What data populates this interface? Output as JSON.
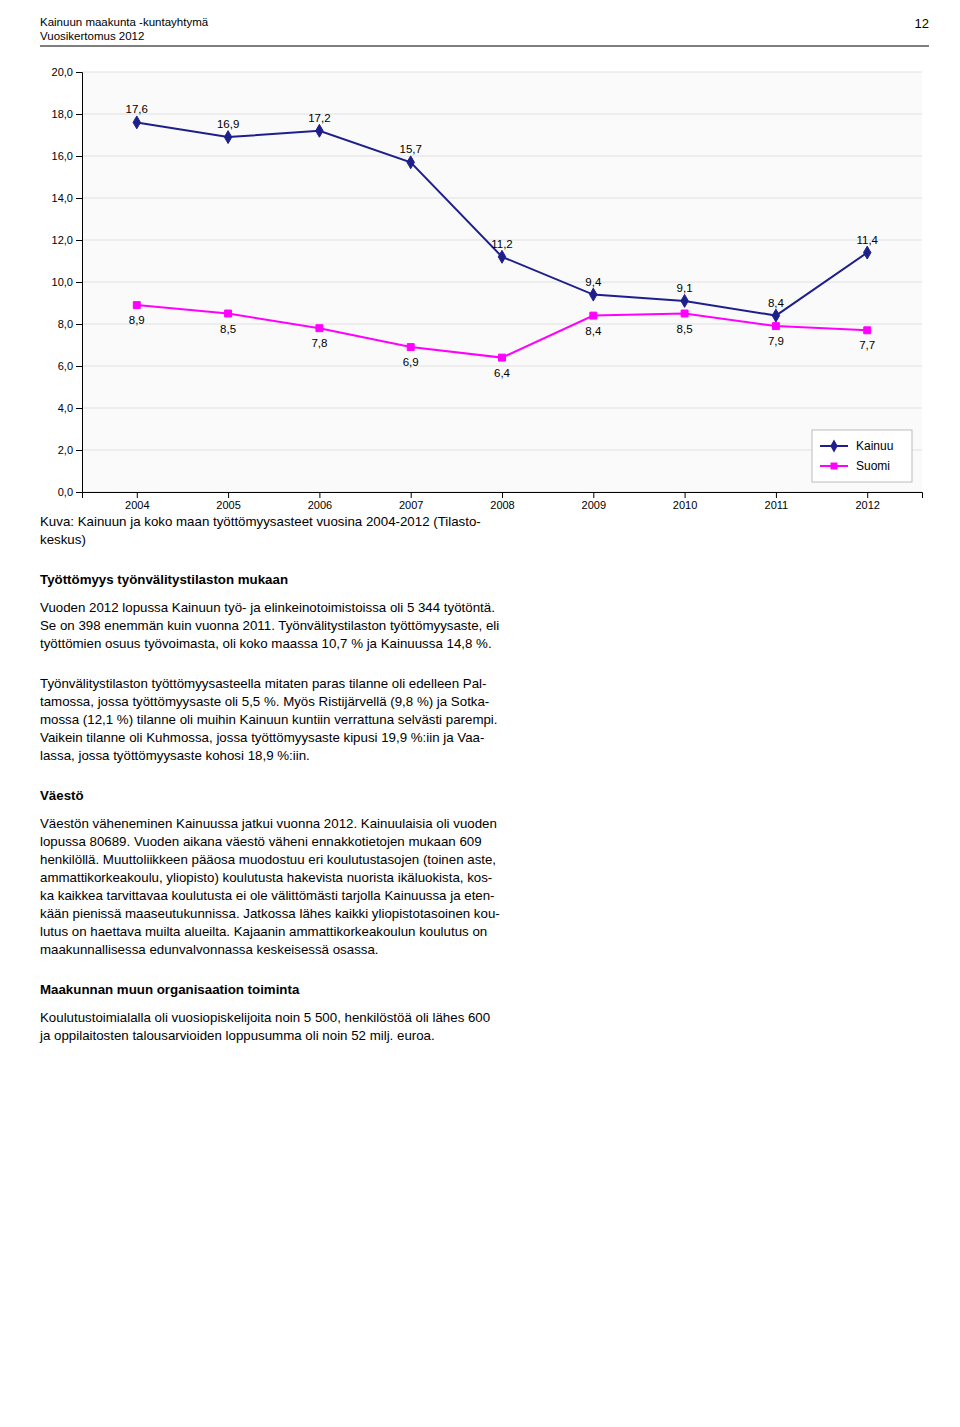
{
  "header": [
    "Kainuun maakunta -kuntayhtymä",
    "Vuosikertomus 2012"
  ],
  "page_number": "12",
  "chart_data": {
    "type": "line",
    "x": [
      2004,
      2005,
      2006,
      2007,
      2008,
      2009,
      2010,
      2011,
      2012
    ],
    "xlim": [
      2003.4,
      2012.6
    ],
    "xticks": [
      2004,
      2005,
      2006,
      2007,
      2008,
      2009,
      2010,
      2011,
      2012
    ],
    "ylim": [
      0.0,
      20.0
    ],
    "yticks": [
      {
        "value": 0.0,
        "label": "0,0"
      },
      {
        "value": 2.0,
        "label": "2,0"
      },
      {
        "value": 4.0,
        "label": "4,0"
      },
      {
        "value": 6.0,
        "label": "6,0"
      },
      {
        "value": 8.0,
        "label": "8,0"
      },
      {
        "value": 10.0,
        "label": "10,0"
      },
      {
        "value": 12.0,
        "label": "12,0"
      },
      {
        "value": 14.0,
        "label": "14,0"
      },
      {
        "value": 16.0,
        "label": "16,0"
      },
      {
        "value": 18.0,
        "label": "18,0"
      },
      {
        "value": 20.0,
        "label": "20,0"
      }
    ],
    "grid": true,
    "legend": "lower right",
    "data_labels": true,
    "series": [
      {
        "name": "Kainuu",
        "color": "#1F1F8C",
        "marker": "diamond",
        "values": [
          17.6,
          16.9,
          17.2,
          15.7,
          11.2,
          9.4,
          9.1,
          8.4,
          11.4
        ],
        "value_labels": [
          "17,6",
          "16,9",
          "17,2",
          "15,7",
          "11,2",
          "9,4",
          "9,1",
          "8,4",
          "11,4"
        ]
      },
      {
        "name": "Suomi",
        "color": "#FF00FF",
        "marker": "square",
        "values": [
          8.9,
          8.5,
          7.8,
          6.9,
          6.4,
          8.4,
          8.5,
          7.9,
          7.7
        ],
        "value_labels": [
          "8,9",
          "8,5",
          "7,8",
          "6,9",
          "6,4",
          "8,4",
          "8,5",
          "7,9",
          "7,7"
        ]
      }
    ]
  },
  "caption": [
    "Kuva: Kainuun ja koko maan työttömyysasteet vuosina 2004-2012 (Tilasto-",
    "keskus)"
  ],
  "sections": [
    {
      "title": "Työttömyys työnvälitystilaston mukaan",
      "lines": [
        "Vuoden 2012 lopussa Kainuun työ- ja elinkeinotoimistoissa oli 5 344 työtöntä.",
        "Se on 398 enemmän kuin vuonna 2011. Työnvälitystilaston työttömyysaste, eli",
        "työttömien osuus työvoimasta, oli koko maassa 10,7 % ja Kainuussa 14,8 %."
      ]
    },
    {
      "lines": [
        "Työnvälitystilaston työttömyysasteella mitaten paras tilanne oli edelleen Pal-",
        "tamossa, jossa työttömyysaste oli 5,5 %. Myös Ristijärvellä (9,8 %) ja Sotka-",
        "mossa (12,1 %) tilanne oli muihin Kainuun kuntiin verrattuna selvästi parempi.",
        "Vaikein tilanne oli Kuhmossa, jossa työttömyysaste kipusi 19,9 %:iin ja Vaa-",
        "lassa, jossa työttömyysaste kohosi 18,9 %:iin."
      ]
    },
    {
      "title": "Väestö",
      "lines": [
        "Väestön väheneminen Kainuussa jatkui vuonna 2012. Kainuulaisia oli vuoden",
        "lopussa 80689. Vuoden aikana väestö väheni ennakkotietojen mukaan 609",
        "henkilöllä. Muuttoliikkeen pääosa muodostuu eri koulutustasojen (toinen aste,",
        "ammattikorkeakoulu, yliopisto) koulutusta hakevista nuorista ikäluokista, kos-",
        "ka kaikkea tarvittavaa koulutusta ei ole välittömästi tarjolla Kainuussa ja eten-",
        "kään pienissä maaseutukunnissa. Jatkossa lähes kaikki yliopistotasoinen kou-",
        "lutus on haettava muilta alueilta. Kajaanin ammattikorkeakoulun koulutus on",
        "maakunnallisessa edunvalvonnassa keskeisessä osassa."
      ]
    },
    {
      "title": "Maakunnan muun organisaation toiminta",
      "lines": [
        "Koulutustoimialalla oli vuosiopiskelijoita noin 5 500, henkilöstöä oli lähes 600",
        "ja oppilaitosten talousarvioiden loppusumma oli noin 52 milj. euroa."
      ]
    }
  ]
}
